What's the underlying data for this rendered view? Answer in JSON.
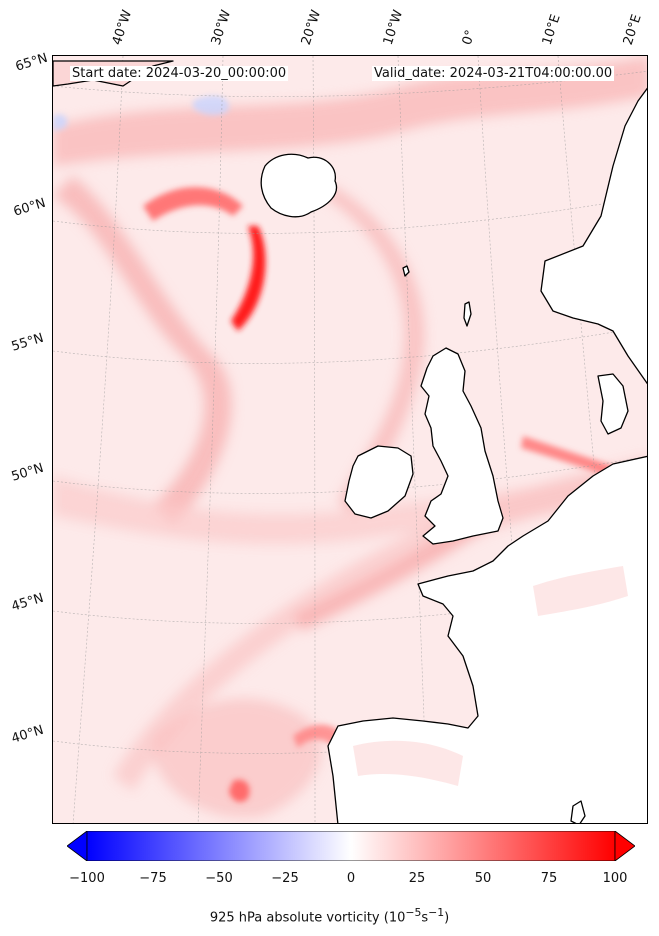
{
  "header": {
    "start_date": "Start date: 2024-03-20_00:00:00",
    "valid_date": "Valid_date: 2024-03-21T04:00:00.00"
  },
  "lon_labels": [
    "40°W",
    "30°W",
    "20°W",
    "10°W",
    "0°",
    "10°E",
    "20°E"
  ],
  "lat_labels": [
    "65°N",
    "60°N",
    "55°N",
    "50°N",
    "45°N",
    "40°N"
  ],
  "colorbar": {
    "ticks": [
      "−100",
      "−75",
      "−50",
      "−25",
      "0",
      "25",
      "50",
      "75",
      "100"
    ],
    "label_html": "925 hPa absolute vorticity (10<sup>−5</sup>s<sup>−1</sup>)",
    "colors": {
      "negative": "#0000ff",
      "zero": "#ffffff",
      "positive": "#ff0000"
    },
    "range": [
      -100,
      100
    ]
  },
  "map": {
    "field": "925 hPa absolute vorticity",
    "colors": {
      "background": "#fdeaea",
      "land": "#ffffff",
      "coast": "#000000",
      "strong": "#ff3333",
      "weak": "#fbc9c9",
      "negative": "#c8d4ff"
    }
  }
}
